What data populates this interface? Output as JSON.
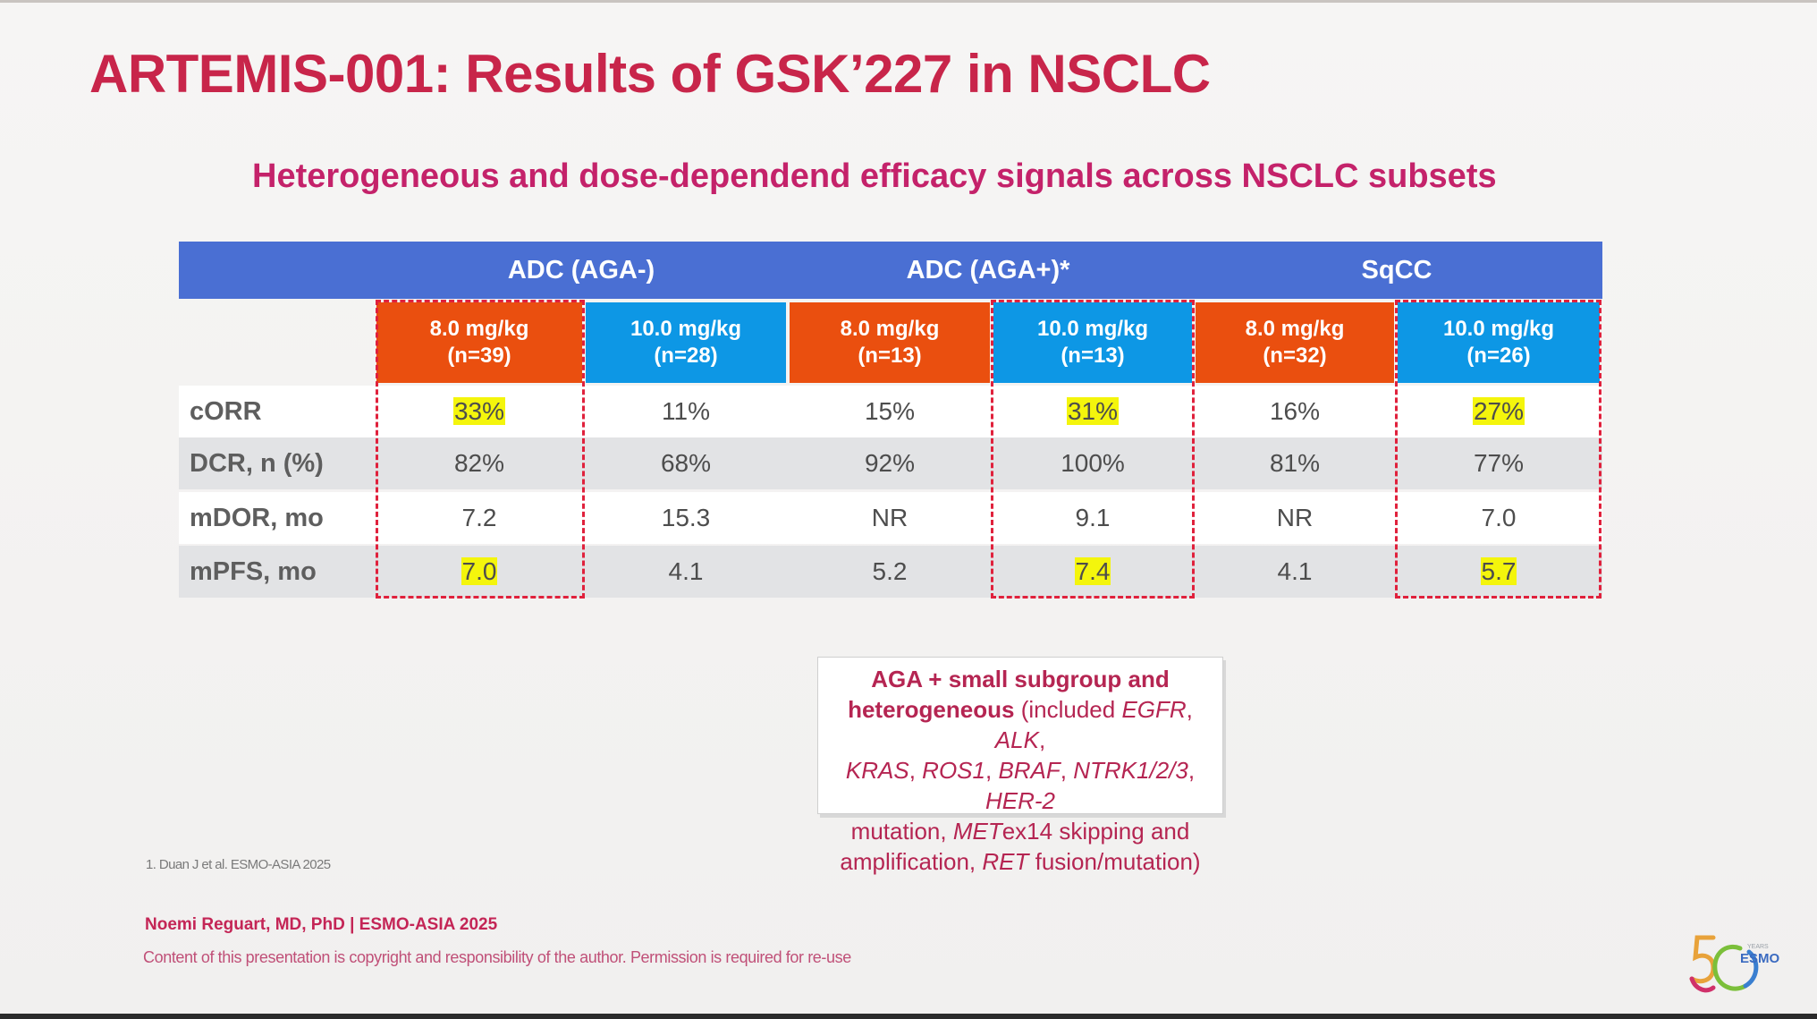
{
  "slide": {
    "title": "ARTEMIS-001: Results of GSK’227 in NSCLC",
    "subtitle": "Heterogeneous and dose-dependend efficacy signals across NSCLC subsets"
  },
  "table": {
    "groups": [
      "ADC (AGA-)",
      "ADC (AGA+)*",
      "SqCC"
    ],
    "doses": [
      {
        "dose": "8.0 mg/kg",
        "n": "(n=39)",
        "color": "#ea4f0f"
      },
      {
        "dose": "10.0 mg/kg",
        "n": "(n=28)",
        "color": "#0d97e5"
      },
      {
        "dose": "8.0 mg/kg",
        "n": "(n=13)",
        "color": "#ea4f0f"
      },
      {
        "dose": "10.0 mg/kg",
        "n": "(n=13)",
        "color": "#0d97e5"
      },
      {
        "dose": "8.0 mg/kg",
        "n": "(n=32)",
        "color": "#ea4f0f"
      },
      {
        "dose": "10.0 mg/kg",
        "n": "(n=26)",
        "color": "#0d97e5"
      }
    ],
    "rows": [
      {
        "label": "cORR",
        "values": [
          "33%",
          "11%",
          "15%",
          "31%",
          "16%",
          "27%"
        ],
        "highlight": [
          true,
          false,
          false,
          true,
          false,
          true
        ]
      },
      {
        "label": "DCR, n (%)",
        "values": [
          "82%",
          "68%",
          "92%",
          "100%",
          "81%",
          "77%"
        ],
        "highlight": [
          false,
          false,
          false,
          false,
          false,
          false
        ]
      },
      {
        "label": "mDOR, mo",
        "values": [
          "7.2",
          "15.3",
          "NR",
          "9.1",
          "NR",
          "7.0"
        ],
        "highlight": [
          false,
          false,
          false,
          false,
          false,
          false
        ]
      },
      {
        "label": "mPFS, mo",
        "values": [
          "7.0",
          "4.1",
          "5.2",
          "7.4",
          "4.1",
          "5.7"
        ],
        "highlight": [
          true,
          false,
          false,
          true,
          false,
          true
        ]
      }
    ],
    "highlight_color": "#f4f50c",
    "header_color": "#4a6fd3",
    "dashed_outline_color": "#e0213c"
  },
  "note": {
    "line1": "AGA + small subgroup and",
    "line2_bold": "heterogeneous",
    "line2_rest": " (included ",
    "egfr": "EGFR",
    "sep1": ", ",
    "alk": "ALK",
    "sep2": ",",
    "kras": "KRAS",
    "sep3": ", ",
    "ros1": "ROS1",
    "sep4": ", ",
    "braf": "BRAF",
    "sep5": ", ",
    "ntrk": "NTRK1/2/3",
    "sep6": ", ",
    "her2": "HER-2",
    "mutation": "mutation, ",
    "met": "MET",
    "met_rest": "ex14 skipping and",
    "amp": "amplification, ",
    "ret": "RET",
    "ret_rest": " fusion/mutation)"
  },
  "footer": {
    "reference": "1. Duan J et al. ESMO-ASIA 2025",
    "author": "Noemi Reguart, MD, PhD | ESMO-ASIA 2025",
    "copyright": "Content of this presentation is copyright and responsibility of the author. Permission is required for re-use",
    "logo_text": "ESMO",
    "logo_small": "YEARS"
  }
}
